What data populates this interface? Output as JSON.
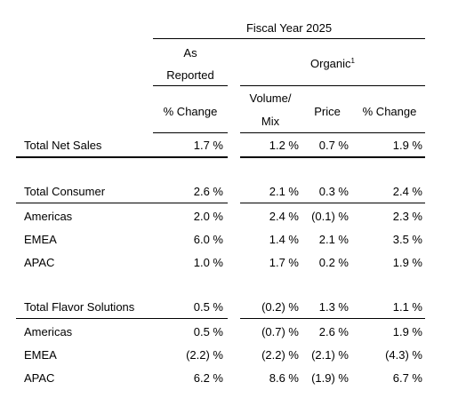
{
  "header": {
    "fiscal_year": "Fiscal Year 2025",
    "as_reported_line1": "As",
    "as_reported_line2": "Reported",
    "organic": "Organic",
    "organic_footnote": "1",
    "col_pct_change_reported": "% Change",
    "col_volume_line1": "Volume/",
    "col_volume_line2": "Mix",
    "col_price": "Price",
    "col_pct_change_organic": "% Change"
  },
  "rows": [
    {
      "label": "Total Net Sales",
      "reported": "1.7 %",
      "volume": "1.2 %",
      "price": "0.7 %",
      "organic": "1.9 %"
    },
    {
      "label": "Total Consumer",
      "reported": "2.6 %",
      "volume": "2.1 %",
      "price": "0.3 %",
      "organic": "2.4 %"
    },
    {
      "label": "Americas",
      "reported": "2.0 %",
      "volume": "2.4 %",
      "price": "(0.1) %",
      "organic": "2.3 %"
    },
    {
      "label": "EMEA",
      "reported": "6.0 %",
      "volume": "1.4 %",
      "price": "2.1 %",
      "organic": "3.5 %"
    },
    {
      "label": "APAC",
      "reported": "1.0 %",
      "volume": "1.7 %",
      "price": "0.2 %",
      "organic": "1.9 %"
    },
    {
      "label": "Total Flavor Solutions",
      "reported": "0.5 %",
      "volume": "(0.2) %",
      "price": "1.3 %",
      "organic": "1.1 %"
    },
    {
      "label": "Americas",
      "reported": "0.5 %",
      "volume": "(0.7) %",
      "price": "2.6 %",
      "organic": "1.9 %"
    },
    {
      "label": "EMEA",
      "reported": "(2.2) %",
      "volume": "(2.2) %",
      "price": "(2.1) %",
      "organic": "(4.3) %"
    },
    {
      "label": "APAC",
      "reported": "6.2 %",
      "volume": "8.6 %",
      "price": "(1.9) %",
      "organic": "6.7 %"
    }
  ]
}
